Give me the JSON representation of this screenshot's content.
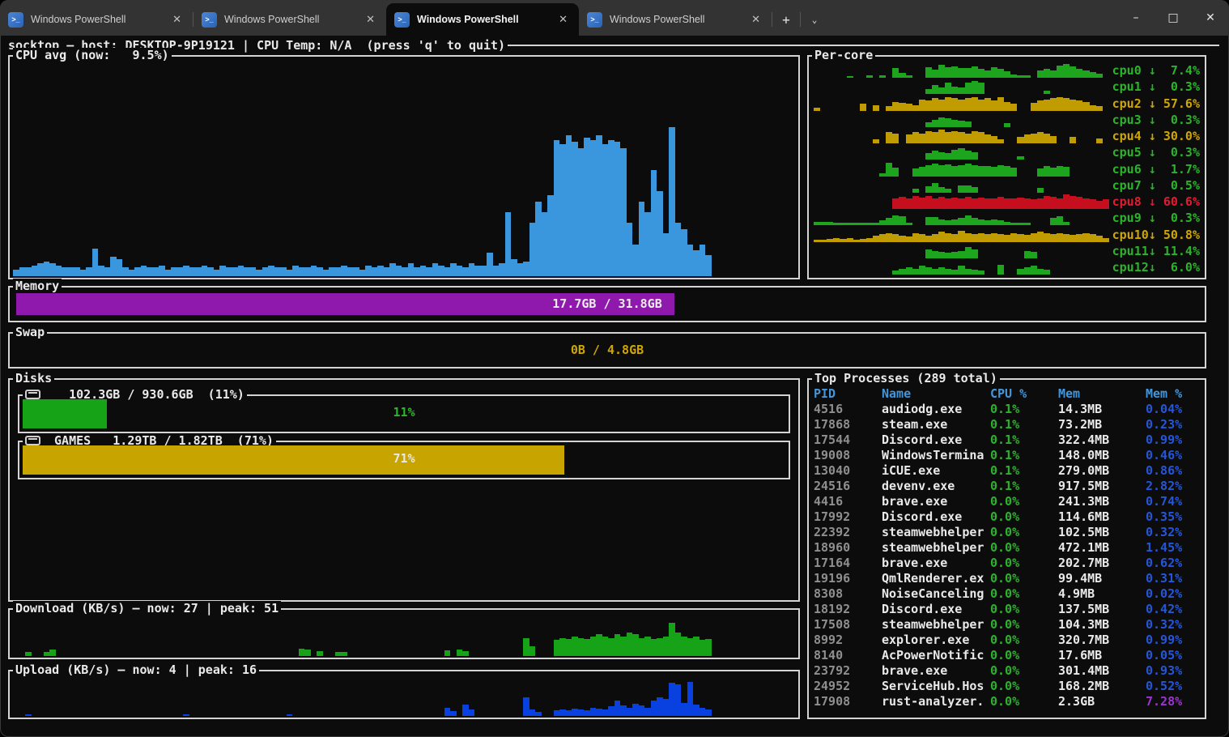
{
  "window": {
    "tabs": [
      {
        "label": "Windows PowerShell",
        "active": false
      },
      {
        "label": "Windows PowerShell",
        "active": false
      },
      {
        "label": "Windows PowerShell",
        "active": true
      },
      {
        "label": "Windows PowerShell",
        "active": false
      }
    ],
    "tab_close": "✕",
    "new_tab": "+",
    "dropdown": "⌄",
    "controls": {
      "minimize": "–",
      "maximize": "□",
      "close": "✕"
    }
  },
  "header": {
    "title": "socktop — host: DESKTOP-9P19121 | CPU Temp: N/A  (press 'q' to quit)"
  },
  "colors": {
    "cpu_chart": "#3a96dd",
    "green": "#1ea51e",
    "green_text": "#2cb32c",
    "yellow": "#c19c00",
    "yellow_text": "#cfa602",
    "red": "#c50f1f",
    "red_text": "#e01b32",
    "download": "#17a317",
    "upload": "#0940e0",
    "header_blue": "#4596d9",
    "value_blue": "#2456d9",
    "purple": "#9a35cd",
    "pid_gray": "#8f8f8f",
    "white": "#e9e9e9"
  },
  "cpu_avg": {
    "title": "CPU avg (now:   9.5%)",
    "values": [
      3,
      4,
      4,
      5,
      6,
      7,
      6,
      5,
      4,
      4,
      4,
      3,
      4,
      13,
      5,
      4,
      9,
      8,
      4,
      3,
      4,
      5,
      4,
      4,
      5,
      3,
      4,
      4,
      5,
      4,
      4,
      5,
      4,
      3,
      5,
      4,
      4,
      5,
      4,
      4,
      3,
      4,
      5,
      4,
      4,
      3,
      5,
      4,
      4,
      5,
      4,
      3,
      4,
      4,
      5,
      4,
      4,
      3,
      5,
      4,
      5,
      4,
      6,
      5,
      4,
      6,
      4,
      5,
      4,
      6,
      5,
      4,
      6,
      5,
      4,
      6,
      5,
      5,
      11,
      5,
      6,
      30,
      8,
      6,
      7,
      25,
      35,
      30,
      38,
      64,
      62,
      66,
      63,
      60,
      65,
      64,
      66,
      62,
      64,
      63,
      60,
      25,
      15,
      35,
      30,
      50,
      40,
      20,
      70,
      25,
      22,
      15,
      12,
      15,
      10
    ]
  },
  "per_core": {
    "title": "Per-core",
    "cores": [
      {
        "label": "cpu0 ↓  7.4%",
        "color": "g",
        "spark": [
          0,
          0,
          0,
          0,
          0,
          8,
          0,
          0,
          12,
          0,
          12,
          0,
          40,
          22,
          12,
          0,
          0,
          45,
          35,
          55,
          45,
          48,
          42,
          40,
          48,
          38,
          32,
          45,
          38,
          28,
          14,
          12,
          12,
          0,
          32,
          38,
          32,
          52,
          58,
          48,
          38,
          32,
          26,
          18,
          0
        ]
      },
      {
        "label": "cpu1 ↓  0.3%",
        "color": "g",
        "spark": [
          0,
          0,
          0,
          0,
          0,
          0,
          0,
          0,
          0,
          0,
          0,
          0,
          0,
          0,
          0,
          0,
          0,
          22,
          38,
          30,
          48,
          32,
          28,
          50,
          58,
          48,
          0,
          0,
          0,
          0,
          0,
          0,
          0,
          0,
          0,
          16,
          0,
          0,
          0,
          0,
          0,
          0,
          0,
          0,
          0
        ]
      },
      {
        "label": "cpu2 ↓ 57.6%",
        "color": "y",
        "spark": [
          12,
          0,
          0,
          0,
          0,
          0,
          0,
          28,
          0,
          22,
          0,
          18,
          38,
          32,
          28,
          22,
          48,
          42,
          52,
          48,
          58,
          52,
          48,
          52,
          58,
          48,
          52,
          42,
          58,
          38,
          28,
          0,
          0,
          32,
          42,
          48,
          52,
          58,
          52,
          48,
          42,
          38,
          22,
          18,
          0
        ]
      },
      {
        "label": "cpu3 ↓  0.3%",
        "color": "g",
        "spark": [
          0,
          0,
          0,
          0,
          0,
          0,
          0,
          0,
          0,
          0,
          0,
          0,
          0,
          0,
          0,
          0,
          0,
          20,
          32,
          42,
          36,
          30,
          26,
          22,
          0,
          0,
          0,
          0,
          0,
          16,
          0,
          0,
          0,
          0,
          0,
          0,
          0,
          0,
          0,
          0,
          0,
          0,
          0,
          0,
          0
        ]
      },
      {
        "label": "cpu4 ↓ 30.0%",
        "color": "y",
        "spark": [
          0,
          0,
          0,
          0,
          0,
          0,
          0,
          0,
          0,
          18,
          0,
          48,
          42,
          0,
          38,
          48,
          42,
          52,
          48,
          58,
          48,
          52,
          48,
          42,
          52,
          48,
          38,
          32,
          16,
          0,
          0,
          28,
          38,
          42,
          48,
          42,
          32,
          0,
          0,
          28,
          0,
          0,
          0,
          22,
          0
        ]
      },
      {
        "label": "cpu5 ↓  0.3%",
        "color": "g",
        "spark": [
          0,
          0,
          0,
          0,
          0,
          0,
          0,
          0,
          0,
          0,
          0,
          0,
          0,
          0,
          0,
          0,
          0,
          28,
          38,
          32,
          28,
          42,
          48,
          38,
          32,
          0,
          0,
          0,
          0,
          0,
          0,
          16,
          0,
          0,
          0,
          0,
          0,
          0,
          0,
          0,
          0,
          0,
          0,
          0,
          0
        ]
      },
      {
        "label": "cpu6 ↓  1.7%",
        "color": "g",
        "spark": [
          0,
          0,
          0,
          0,
          0,
          0,
          0,
          0,
          0,
          0,
          12,
          58,
          38,
          0,
          0,
          32,
          40,
          48,
          52,
          48,
          50,
          44,
          48,
          52,
          48,
          42,
          44,
          40,
          48,
          42,
          36,
          0,
          0,
          0,
          32,
          42,
          36,
          44,
          40,
          0,
          0,
          0,
          0,
          0,
          0
        ]
      },
      {
        "label": "cpu7 ↓  0.5%",
        "color": "g",
        "spark": [
          0,
          0,
          0,
          0,
          0,
          0,
          0,
          0,
          0,
          0,
          0,
          0,
          0,
          0,
          0,
          16,
          0,
          26,
          42,
          22,
          16,
          0,
          32,
          30,
          22,
          0,
          0,
          0,
          0,
          0,
          0,
          0,
          0,
          0,
          20,
          0,
          0,
          0,
          0,
          0,
          0,
          0,
          0,
          0,
          0
        ]
      },
      {
        "label": "cpu8 ↓ 60.6%",
        "color": "r",
        "spark": [
          0,
          0,
          0,
          0,
          0,
          0,
          0,
          0,
          0,
          0,
          0,
          0,
          45,
          52,
          46,
          56,
          48,
          54,
          46,
          52,
          44,
          48,
          46,
          52,
          46,
          48,
          44,
          46,
          52,
          46,
          44,
          48,
          46,
          42,
          46,
          56,
          52,
          46,
          62,
          56,
          52,
          46,
          42,
          36,
          40
        ]
      },
      {
        "label": "cpu9 ↓  0.3%",
        "color": "g",
        "spark": [
          16,
          16,
          14,
          10,
          10,
          10,
          12,
          12,
          10,
          12,
          22,
          32,
          42,
          38,
          10,
          0,
          0,
          36,
          36,
          26,
          22,
          26,
          32,
          42,
          32,
          26,
          22,
          26,
          20,
          16,
          12,
          10,
          10,
          0,
          0,
          0,
          32,
          38,
          16,
          0,
          0,
          0,
          0,
          0,
          0
        ]
      },
      {
        "label": "cpu10↓ 50.8%",
        "color": "y",
        "spark": [
          10,
          10,
          12,
          16,
          12,
          14,
          10,
          12,
          16,
          26,
          32,
          38,
          32,
          26,
          22,
          38,
          32,
          26,
          32,
          42,
          38,
          32,
          46,
          38,
          32,
          38,
          32,
          38,
          32,
          30,
          38,
          32,
          28,
          38,
          42,
          38,
          32,
          38,
          32,
          28,
          32,
          38,
          32,
          26,
          16
        ]
      },
      {
        "label": "cpu11↓ 11.4%",
        "color": "g",
        "spark": [
          0,
          0,
          0,
          0,
          0,
          0,
          0,
          0,
          0,
          0,
          0,
          0,
          0,
          0,
          0,
          0,
          0,
          38,
          32,
          26,
          22,
          26,
          32,
          48,
          38,
          0,
          0,
          0,
          0,
          0,
          0,
          0,
          32,
          26,
          0,
          0,
          0,
          0,
          0,
          0,
          0,
          0,
          0,
          0,
          0
        ]
      },
      {
        "label": "cpu12↓  6.0%",
        "color": "g",
        "spark": [
          0,
          0,
          0,
          0,
          0,
          0,
          0,
          0,
          0,
          0,
          0,
          0,
          16,
          26,
          32,
          26,
          38,
          32,
          26,
          32,
          26,
          22,
          38,
          26,
          22,
          16,
          0,
          0,
          42,
          0,
          0,
          26,
          32,
          38,
          26,
          22,
          0,
          0,
          0,
          0,
          0,
          0,
          0,
          0,
          0
        ]
      }
    ]
  },
  "memory": {
    "title": "Memory",
    "label": "17.7GB / 31.8GB",
    "percent": 55.7,
    "color": "#9019ad",
    "label_color": "#ededed"
  },
  "swap": {
    "title": "Swap",
    "label": "0B / 4.8GB",
    "percent": 0,
    "label_color": "#cfa602"
  },
  "disks": {
    "title": "Disks",
    "items": [
      {
        "title": "   102.3GB / 930.6GB  (11%)",
        "percent": 11,
        "pct_label": "11%",
        "bar_color": "#17a317",
        "label_color": "#2db52d"
      },
      {
        "title": " GAMES   1.29TB / 1.82TB  (71%)",
        "percent": 71,
        "pct_label": "71%",
        "bar_color": "#c8a400",
        "label_color": "#e8e8e8"
      }
    ]
  },
  "download": {
    "title": "Download (KB/s) — now: 27 | peak: 51",
    "values": [
      0,
      0,
      11,
      0,
      0,
      11,
      16,
      0,
      0,
      0,
      0,
      0,
      0,
      0,
      0,
      0,
      0,
      0,
      0,
      0,
      0,
      0,
      0,
      0,
      0,
      0,
      0,
      0,
      0,
      0,
      0,
      0,
      0,
      0,
      0,
      0,
      0,
      0,
      0,
      0,
      0,
      0,
      0,
      0,
      0,
      0,
      0,
      18,
      16,
      0,
      12,
      0,
      0,
      10,
      10,
      0,
      0,
      0,
      0,
      0,
      0,
      0,
      0,
      0,
      0,
      0,
      0,
      0,
      0,
      0,
      0,
      14,
      0,
      16,
      12,
      0,
      0,
      0,
      0,
      0,
      0,
      0,
      0,
      0,
      45,
      25,
      0,
      0,
      0,
      40,
      45,
      42,
      50,
      45,
      42,
      50,
      55,
      50,
      45,
      55,
      50,
      60,
      55,
      45,
      50,
      42,
      45,
      50,
      84,
      60,
      50,
      45,
      50,
      40,
      42
    ]
  },
  "upload": {
    "title": "Upload (KB/s) — now: 4 | peak: 16",
    "values": [
      0,
      0,
      4,
      0,
      0,
      0,
      0,
      0,
      0,
      0,
      0,
      0,
      0,
      0,
      0,
      0,
      0,
      0,
      0,
      0,
      0,
      0,
      0,
      0,
      0,
      0,
      0,
      0,
      4,
      0,
      0,
      0,
      0,
      0,
      0,
      0,
      0,
      0,
      0,
      0,
      0,
      0,
      0,
      0,
      0,
      4,
      0,
      0,
      0,
      0,
      0,
      0,
      0,
      0,
      0,
      0,
      0,
      0,
      0,
      0,
      0,
      0,
      0,
      0,
      0,
      0,
      0,
      0,
      0,
      0,
      0,
      22,
      12,
      0,
      30,
      18,
      0,
      0,
      0,
      0,
      0,
      0,
      0,
      0,
      48,
      18,
      10,
      0,
      0,
      15,
      18,
      15,
      20,
      18,
      15,
      22,
      20,
      18,
      25,
      40,
      28,
      22,
      32,
      28,
      22,
      40,
      50,
      45,
      88,
      82,
      35,
      90,
      30,
      22,
      18
    ]
  },
  "processes": {
    "title": "Top Processes (289 total)",
    "columns": [
      "PID",
      "Name",
      "CPU %",
      "Mem",
      "Mem %"
    ],
    "rows": [
      {
        "pid": "4516",
        "name": "audiodg.exe",
        "cpu": "0.1%",
        "mem": "14.3MB",
        "memp": "0.04%"
      },
      {
        "pid": "17868",
        "name": "steam.exe",
        "cpu": "0.1%",
        "mem": "73.2MB",
        "memp": "0.23%"
      },
      {
        "pid": "17544",
        "name": "Discord.exe",
        "cpu": "0.1%",
        "mem": "322.4MB",
        "memp": "0.99%"
      },
      {
        "pid": "19008",
        "name": "WindowsTermina",
        "cpu": "0.1%",
        "mem": "148.0MB",
        "memp": "0.46%"
      },
      {
        "pid": "13040",
        "name": "iCUE.exe",
        "cpu": "0.1%",
        "mem": "279.0MB",
        "memp": "0.86%"
      },
      {
        "pid": "24516",
        "name": "devenv.exe",
        "cpu": "0.1%",
        "mem": "917.5MB",
        "memp": "2.82%"
      },
      {
        "pid": "4416",
        "name": "brave.exe",
        "cpu": "0.0%",
        "mem": "241.3MB",
        "memp": "0.74%"
      },
      {
        "pid": "17992",
        "name": "Discord.exe",
        "cpu": "0.0%",
        "mem": "114.6MB",
        "memp": "0.35%"
      },
      {
        "pid": "22392",
        "name": "steamwebhelper",
        "cpu": "0.0%",
        "mem": "102.5MB",
        "memp": "0.32%"
      },
      {
        "pid": "18960",
        "name": "steamwebhelper",
        "cpu": "0.0%",
        "mem": "472.1MB",
        "memp": "1.45%"
      },
      {
        "pid": "17164",
        "name": "brave.exe",
        "cpu": "0.0%",
        "mem": "202.7MB",
        "memp": "0.62%"
      },
      {
        "pid": "19196",
        "name": "QmlRenderer.ex",
        "cpu": "0.0%",
        "mem": "99.4MB",
        "memp": "0.31%"
      },
      {
        "pid": "8308",
        "name": "NoiseCanceling",
        "cpu": "0.0%",
        "mem": "4.9MB",
        "memp": "0.02%"
      },
      {
        "pid": "18192",
        "name": "Discord.exe",
        "cpu": "0.0%",
        "mem": "137.5MB",
        "memp": "0.42%"
      },
      {
        "pid": "17508",
        "name": "steamwebhelper",
        "cpu": "0.0%",
        "mem": "104.3MB",
        "memp": "0.32%"
      },
      {
        "pid": "8992",
        "name": "explorer.exe",
        "cpu": "0.0%",
        "mem": "320.7MB",
        "memp": "0.99%"
      },
      {
        "pid": "8140",
        "name": "AcPowerNotific",
        "cpu": "0.0%",
        "mem": "17.6MB",
        "memp": "0.05%"
      },
      {
        "pid": "23792",
        "name": "brave.exe",
        "cpu": "0.0%",
        "mem": "301.4MB",
        "memp": "0.93%"
      },
      {
        "pid": "24952",
        "name": "ServiceHub.Hos",
        "cpu": "0.0%",
        "mem": "168.2MB",
        "memp": "0.52%"
      },
      {
        "pid": "17908",
        "name": "rust-analyzer.",
        "cpu": "0.0%",
        "mem": "2.3GB",
        "memp": "7.28%",
        "memp_color": "purple"
      }
    ]
  }
}
